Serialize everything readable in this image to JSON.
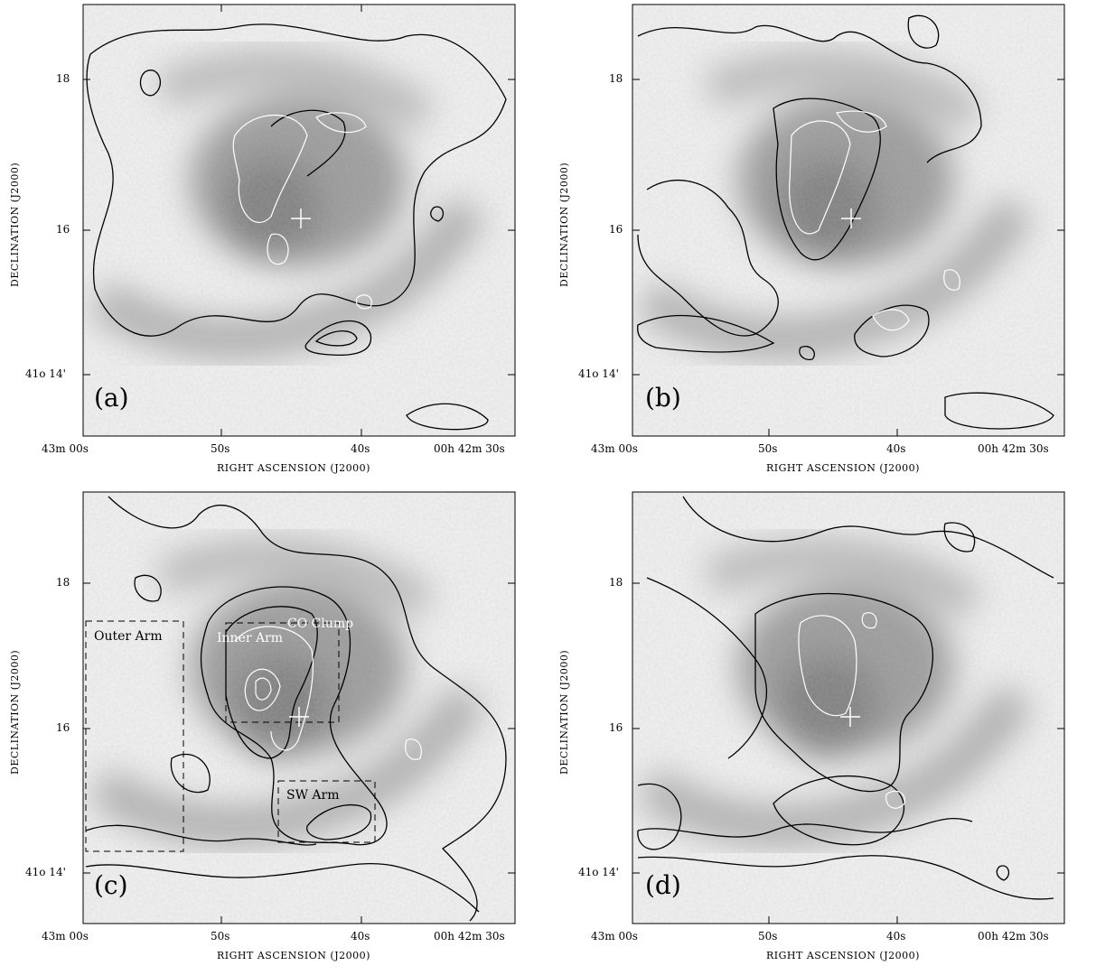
{
  "axes": {
    "xlabel": "RIGHT ASCENSION (J2000)",
    "ylabel": "DECLINATION (J2000)",
    "xticks": [
      "43m 00s",
      "50s",
      "40s",
      "00h 42m 30s"
    ],
    "yticks": [
      "18",
      "16",
      "41o 14'"
    ]
  },
  "panels": [
    {
      "label": "(a)"
    },
    {
      "label": "(b)"
    },
    {
      "label": "(c)",
      "regions": [
        {
          "name": "Outer Arm"
        },
        {
          "name": "Inner Arm"
        },
        {
          "name": "CO Clump"
        },
        {
          "name": "SW Arm"
        }
      ]
    },
    {
      "label": "(d)"
    }
  ]
}
